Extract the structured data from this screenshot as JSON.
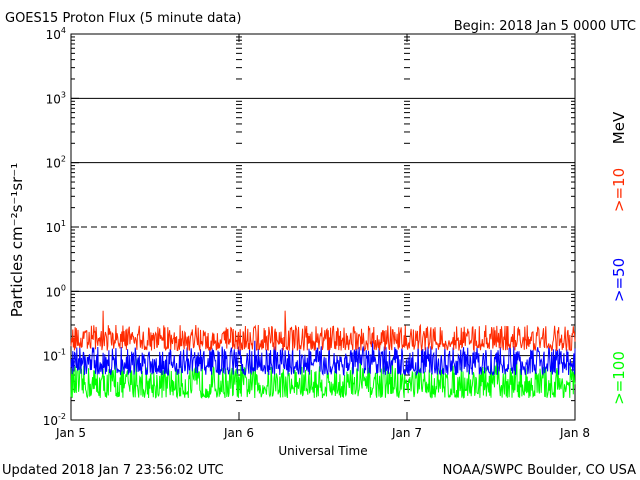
{
  "header": {
    "title": "GOES15 Proton Flux (5 minute data)",
    "begin": "Begin: 2018 Jan 5 0000 UTC"
  },
  "footer": {
    "updated": "Updated 2018 Jan  7 23:56:02 UTC",
    "credit": "NOAA/SWPC Boulder, CO USA"
  },
  "chart_data": {
    "type": "line",
    "title": "GOES15 Proton Flux (5 minute data)",
    "xlabel": "Universal Time",
    "ylabel": "Particles cm⁻²s⁻¹sr⁻¹",
    "y_scale": "log",
    "ylim": [
      0.01,
      10000
    ],
    "y_ticks": [
      {
        "base": "10",
        "exp": "-2",
        "value": 0.01
      },
      {
        "base": "10",
        "exp": "-1",
        "value": 0.1
      },
      {
        "base": "10",
        "exp": "0",
        "value": 1
      },
      {
        "base": "10",
        "exp": "1",
        "value": 10
      },
      {
        "base": "10",
        "exp": "2",
        "value": 100
      },
      {
        "base": "10",
        "exp": "3",
        "value": 1000
      },
      {
        "base": "10",
        "exp": "4",
        "value": 10000
      }
    ],
    "x_ticks": [
      "Jan 5",
      "Jan 6",
      "Jan 7",
      "Jan 8"
    ],
    "xlim_days": [
      0,
      3
    ],
    "reference_lines": [
      {
        "value": 1000,
        "style": "solid"
      },
      {
        "value": 100,
        "style": "solid"
      },
      {
        "value": 10,
        "style": "dashed"
      },
      {
        "value": 1,
        "style": "solid"
      },
      {
        "value": 0.1,
        "style": "solid"
      }
    ],
    "units_label": "MeV",
    "series": [
      {
        "name": ">=10",
        "color": "#ff2a00",
        "level_min": 0.12,
        "level_max": 0.3,
        "peak": 0.5
      },
      {
        "name": ">=50",
        "color": "#0000ff",
        "level_min": 0.05,
        "level_max": 0.14,
        "peak": 0.17
      },
      {
        "name": ">=100",
        "color": "#00ff00",
        "level_min": 0.022,
        "level_max": 0.07,
        "peak": 0.09
      }
    ]
  }
}
